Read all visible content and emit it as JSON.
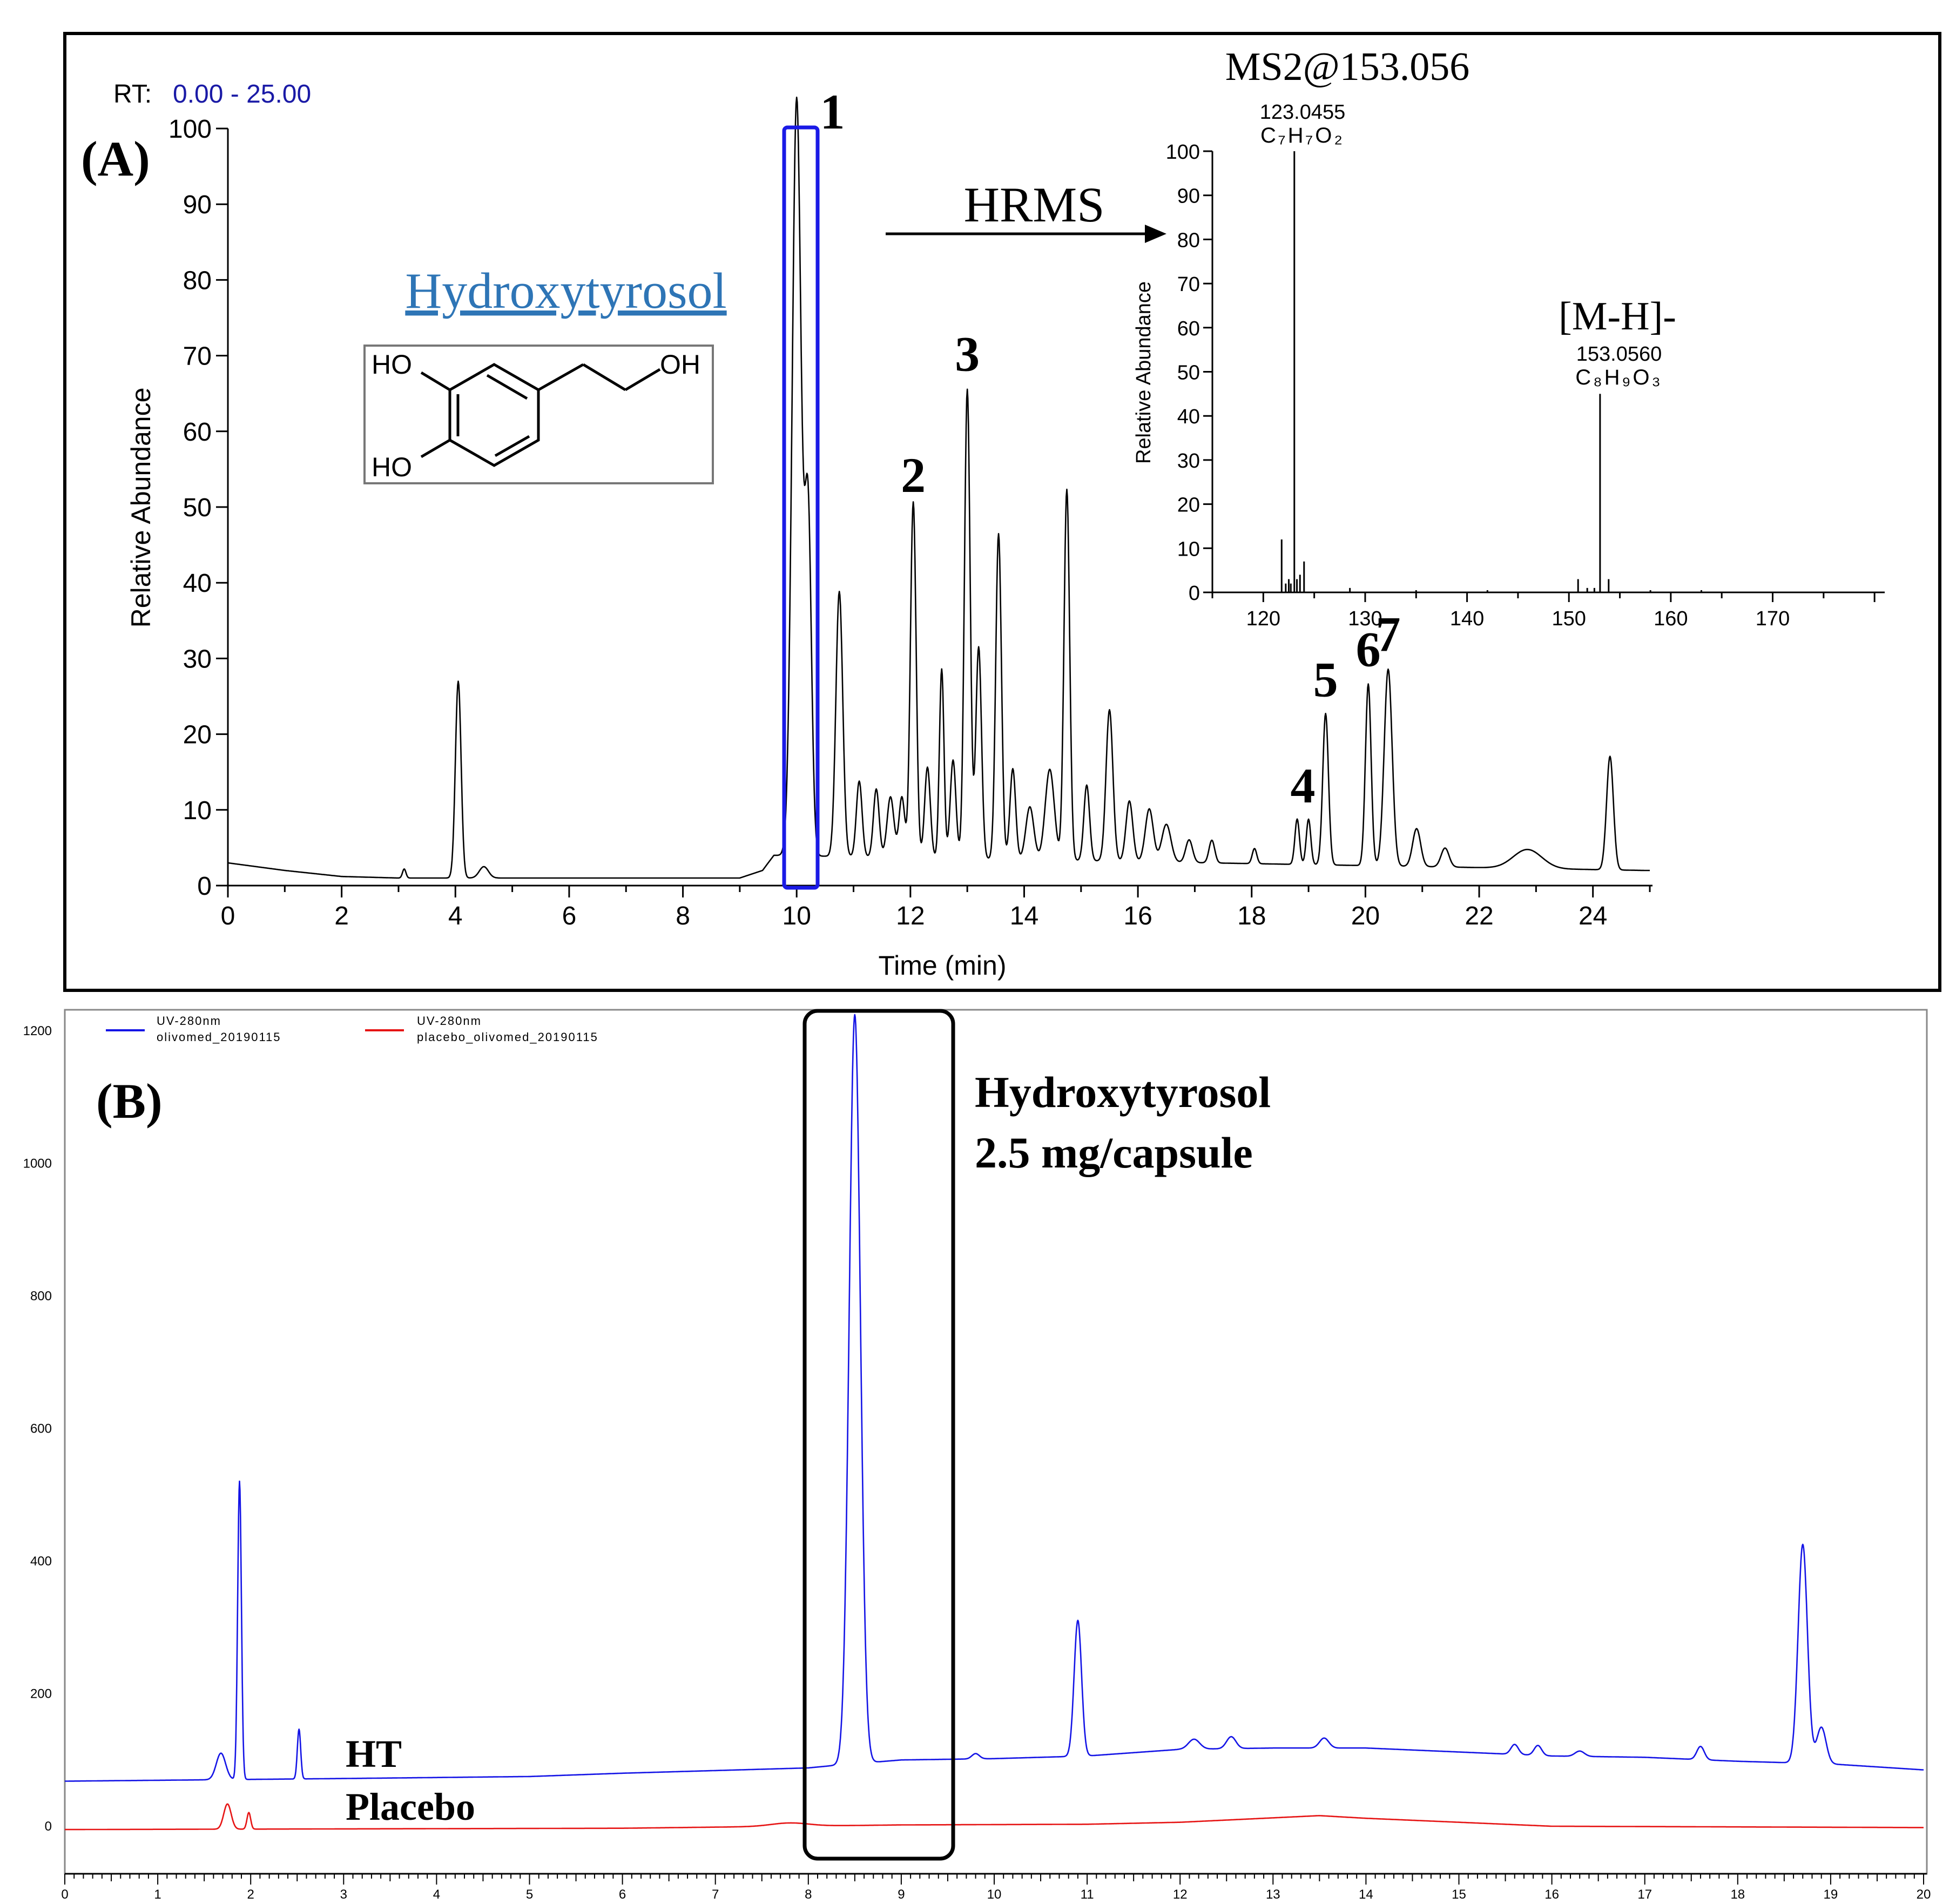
{
  "panel_a": {
    "label": "(A)",
    "rt_label": "RT:",
    "rt_range": "0.00 - 25.00",
    "compound_name": "Hydroxytyrosol",
    "structure": {
      "oh1": "HO",
      "oh2": "HO",
      "oh3": "OH"
    },
    "hrms_label": "HRMS",
    "peak_labels": [
      {
        "text": "1",
        "x": 10.05,
        "y": 98
      },
      {
        "text": "2",
        "x": 12.05,
        "y": 50
      },
      {
        "text": "3",
        "x": 13.0,
        "y": 66
      },
      {
        "text": "4",
        "x": 18.9,
        "y": 9
      },
      {
        "text": "5",
        "x": 19.3,
        "y": 23
      },
      {
        "text": "6",
        "x": 20.05,
        "y": 27
      },
      {
        "text": "7",
        "x": 20.4,
        "y": 29
      }
    ],
    "colors": {
      "highlight_box": "#1a1ae6",
      "rt_value": "#1a1aa6",
      "compound_name": "#2e75b6"
    },
    "inset_title": "MS2@153.056",
    "inset_annotations": [
      {
        "mz": "123.0455",
        "formula": "C₇H₇O₂"
      },
      {
        "ion": "[M-H]-",
        "mz": "153.0560",
        "formula": "C₈H₉O₃"
      }
    ]
  },
  "panel_b": {
    "label": "(B)",
    "annotation_line1": "Hydroxytyrosol",
    "annotation_line2": "2.5 mg/capsule",
    "trace_labels": {
      "ht": "HT",
      "placebo": "Placebo"
    },
    "legend": [
      {
        "line1": "UV-280nm",
        "line2": "olivomed_20190115",
        "color": "#1414e6"
      },
      {
        "line1": "UV-280nm",
        "line2": "placebo_olivomed_20190115",
        "color": "#e61414"
      }
    ]
  },
  "chart_data": [
    {
      "type": "line",
      "xlabel": "Time (min)",
      "ylabel": "Relative Abundance",
      "xlim": [
        0,
        25
      ],
      "ylim": [
        0,
        100
      ],
      "xticks": [
        "0",
        "2",
        "4",
        "6",
        "8",
        "10",
        "12",
        "14",
        "16",
        "18",
        "20",
        "22",
        "24"
      ],
      "yticks": [
        "0",
        "10",
        "20",
        "30",
        "40",
        "50",
        "60",
        "70",
        "80",
        "90",
        "100"
      ],
      "baseline": [
        [
          0,
          3
        ],
        [
          1,
          2
        ],
        [
          2,
          1.2
        ],
        [
          3,
          1
        ],
        [
          9,
          1
        ],
        [
          9.4,
          2
        ],
        [
          9.6,
          4
        ],
        [
          24.9,
          2
        ]
      ],
      "peaks": [
        [
          3.1,
          1.2,
          0.03
        ],
        [
          4.05,
          26,
          0.05
        ],
        [
          4.5,
          1.5,
          0.08
        ],
        [
          10.0,
          100,
          0.08
        ],
        [
          10.2,
          45,
          0.06
        ],
        [
          10.75,
          35,
          0.06
        ],
        [
          11.1,
          10,
          0.05
        ],
        [
          11.4,
          9,
          0.05
        ],
        [
          11.65,
          8,
          0.06
        ],
        [
          11.85,
          8,
          0.05
        ],
        [
          12.05,
          47,
          0.05
        ],
        [
          12.3,
          12,
          0.05
        ],
        [
          12.55,
          25,
          0.04
        ],
        [
          12.75,
          13,
          0.05
        ],
        [
          13.0,
          62,
          0.05
        ],
        [
          13.2,
          28,
          0.05
        ],
        [
          13.55,
          43,
          0.05
        ],
        [
          13.8,
          12,
          0.05
        ],
        [
          14.1,
          7,
          0.07
        ],
        [
          14.45,
          12,
          0.08
        ],
        [
          14.75,
          49,
          0.05
        ],
        [
          15.1,
          10,
          0.05
        ],
        [
          15.5,
          20,
          0.06
        ],
        [
          15.85,
          8,
          0.06
        ],
        [
          16.2,
          7,
          0.07
        ],
        [
          16.5,
          5,
          0.08
        ],
        [
          16.9,
          3,
          0.06
        ],
        [
          17.3,
          3,
          0.05
        ],
        [
          18.05,
          2,
          0.04
        ],
        [
          18.8,
          6,
          0.04
        ],
        [
          19.0,
          6,
          0.04
        ],
        [
          19.3,
          20,
          0.05
        ],
        [
          20.05,
          24,
          0.05
        ],
        [
          20.4,
          26,
          0.07
        ],
        [
          20.9,
          5,
          0.07
        ],
        [
          21.4,
          2.5,
          0.07
        ],
        [
          22.85,
          2.5,
          0.25
        ],
        [
          24.3,
          15,
          0.06
        ]
      ]
    },
    {
      "type": "bar",
      "title": "MS2@153.056",
      "ylabel": "Relative Abundance",
      "xlim": [
        115,
        181
      ],
      "ylim": [
        0,
        100
      ],
      "xticks": [
        "120",
        "130",
        "140",
        "150",
        "160",
        "170"
      ],
      "yticks": [
        "0",
        "10",
        "20",
        "30",
        "40",
        "50",
        "60",
        "70",
        "80",
        "90",
        "100"
      ],
      "x": [
        121.8,
        122.2,
        122.5,
        122.7,
        123.0455,
        123.3,
        123.6,
        124.0,
        128.5,
        135.0,
        142.0,
        150.9,
        151.8,
        152.5,
        153.056,
        153.9,
        158.0,
        163.0
      ],
      "values": [
        12,
        2,
        3,
        2,
        100,
        3,
        4,
        7,
        1,
        0.5,
        0.5,
        3,
        1,
        1,
        45,
        3,
        0.5,
        0.5
      ]
    },
    {
      "type": "line",
      "xlim": [
        0,
        20
      ],
      "ylim": [
        0,
        1230
      ],
      "xticks": [
        "0",
        "1",
        "2",
        "3",
        "4",
        "5",
        "6",
        "7",
        "8",
        "9",
        "10",
        "11",
        "12",
        "13",
        "14",
        "15",
        "16",
        "17",
        "18",
        "19",
        "20"
      ],
      "yticks": [
        "0",
        "200",
        "400",
        "600",
        "800",
        "1000",
        "1200"
      ],
      "series": [
        {
          "name": "olivomed_20190115",
          "color": "#1414e6",
          "baseline": [
            [
              0,
              68
            ],
            [
              1.5,
              70
            ],
            [
              3,
              72
            ],
            [
              5,
              75
            ],
            [
              6,
              80
            ],
            [
              8,
              88
            ],
            [
              8.3,
              92
            ],
            [
              9,
              100
            ],
            [
              10,
              102
            ],
            [
              11,
              106
            ],
            [
              12,
              116
            ],
            [
              13,
              118
            ],
            [
              14,
              118
            ],
            [
              15,
              112
            ],
            [
              16,
              106
            ],
            [
              17,
              104
            ],
            [
              18,
              98
            ],
            [
              19,
              94
            ],
            [
              20,
              85
            ]
          ],
          "peaks": [
            [
              1.68,
              40,
              0.05
            ],
            [
              1.88,
              450,
              0.02
            ],
            [
              2.52,
              75,
              0.018
            ],
            [
              8.5,
              1130,
              0.06
            ],
            [
              9.8,
              8,
              0.04
            ],
            [
              10.9,
              205,
              0.04
            ],
            [
              12.15,
              15,
              0.06
            ],
            [
              12.55,
              18,
              0.05
            ],
            [
              13.55,
              15,
              0.05
            ],
            [
              15.6,
              15,
              0.04
            ],
            [
              15.85,
              15,
              0.04
            ],
            [
              16.3,
              8,
              0.05
            ],
            [
              17.6,
              20,
              0.04
            ],
            [
              18.7,
              330,
              0.05
            ],
            [
              18.9,
              55,
              0.05
            ]
          ]
        },
        {
          "name": "placebo_olivomed_20190115",
          "color": "#e61414",
          "baseline": [
            [
              0,
              -5
            ],
            [
              6,
              -3
            ],
            [
              9,
              2
            ],
            [
              11,
              3
            ],
            [
              12,
              6
            ],
            [
              13.5,
              16
            ],
            [
              14,
              12
            ],
            [
              15,
              6
            ],
            [
              16,
              0
            ],
            [
              20,
              -2
            ]
          ],
          "peaks": [
            [
              1.75,
              38,
              0.04
            ],
            [
              1.98,
              25,
              0.02
            ],
            [
              7.8,
              5,
              0.2
            ]
          ]
        }
      ]
    }
  ]
}
